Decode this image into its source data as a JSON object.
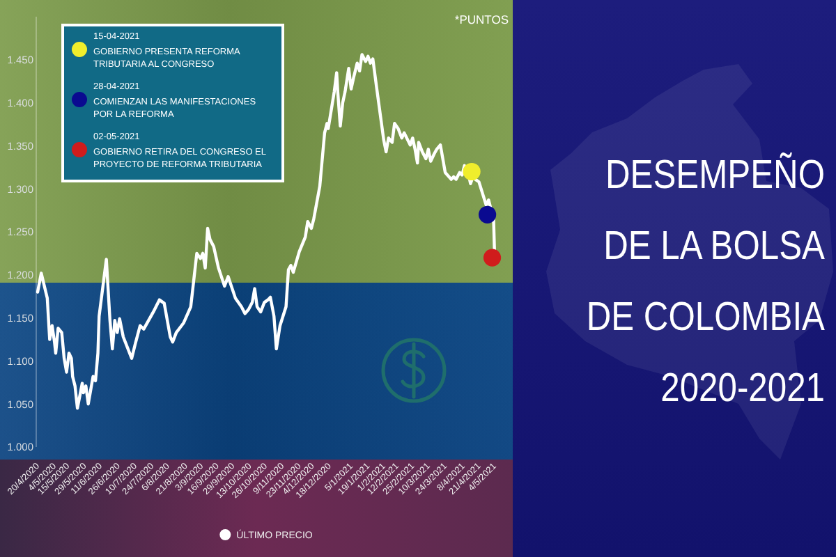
{
  "chart_data": {
    "type": "line",
    "title": "DESEMPEÑO DE LA BOLSA DE COLOMBIA 2020-2021",
    "ylabel": "*PUNTOS",
    "xlim": [
      "2020-04-20",
      "2021-05-04"
    ],
    "xticks": [
      {
        "value": "2020-04-20",
        "label": "20/4/2020"
      },
      {
        "value": "2020-05-04",
        "label": "4/5/2020"
      },
      {
        "value": "2020-05-15",
        "label": "15/5/2020"
      },
      {
        "value": "2020-05-29",
        "label": "29/5/2020"
      },
      {
        "value": "2020-06-11",
        "label": "11/6/2020"
      },
      {
        "value": "2020-06-26",
        "label": "26/6/2020"
      },
      {
        "value": "2020-07-10",
        "label": "10/7/2020"
      },
      {
        "value": "2020-07-24",
        "label": "24/7/2020"
      },
      {
        "value": "2020-08-06",
        "label": "6/8/2020"
      },
      {
        "value": "2020-08-21",
        "label": "21/8/2020"
      },
      {
        "value": "2020-09-03",
        "label": "3/9/2020"
      },
      {
        "value": "2020-09-16",
        "label": "16/9/2020"
      },
      {
        "value": "2020-09-29",
        "label": "29/9/2020"
      },
      {
        "value": "2020-10-13",
        "label": "13/10/2020"
      },
      {
        "value": "2020-10-26",
        "label": "26/10/2020"
      },
      {
        "value": "2020-11-09",
        "label": "9/11/2020"
      },
      {
        "value": "2020-11-23",
        "label": "23/11/2020"
      },
      {
        "value": "2020-12-04",
        "label": "4/12/2020"
      },
      {
        "value": "2020-12-18",
        "label": "18/12/2020"
      },
      {
        "value": "2021-01-05",
        "label": "5/1/2021"
      },
      {
        "value": "2021-01-19",
        "label": "19/1/2021"
      },
      {
        "value": "2021-02-01",
        "label": "1/2/2021"
      },
      {
        "value": "2021-02-12",
        "label": "12/2/2021"
      },
      {
        "value": "2021-02-25",
        "label": "25/2/2021"
      },
      {
        "value": "2021-03-10",
        "label": "10/3/2021"
      },
      {
        "value": "2021-03-24",
        "label": "24/3/2021"
      },
      {
        "value": "2021-04-08",
        "label": "8/4/2021"
      },
      {
        "value": "2021-04-21",
        "label": "21/4/2021"
      },
      {
        "value": "2021-05-04",
        "label": "4/5/2021"
      }
    ],
    "ylim": [
      1000,
      1500
    ],
    "yticks": [
      {
        "value": 1000,
        "label": "1.000"
      },
      {
        "value": 1050,
        "label": "1.050"
      },
      {
        "value": 1100,
        "label": "1.100"
      },
      {
        "value": 1150,
        "label": "1.150"
      },
      {
        "value": 1200,
        "label": "1.200"
      },
      {
        "value": 1250,
        "label": "1.250"
      },
      {
        "value": 1300,
        "label": "1.300"
      },
      {
        "value": 1350,
        "label": "1.350"
      },
      {
        "value": 1400,
        "label": "1.400"
      },
      {
        "value": 1450,
        "label": "1.450"
      }
    ],
    "legend": "bottom",
    "series": [
      {
        "name": "ÚLTIMO PRECIO",
        "color": "#ffffff",
        "x": [
          "2020-04-20",
          "2020-04-23",
          "2020-04-28",
          "2020-04-30",
          "2020-05-02",
          "2020-05-04",
          "2020-05-05",
          "2020-05-07",
          "2020-05-10",
          "2020-05-12",
          "2020-05-14",
          "2020-05-16",
          "2020-05-18",
          "2020-05-19",
          "2020-05-21",
          "2020-05-23",
          "2020-05-27",
          "2020-05-28",
          "2020-05-30",
          "2020-06-01",
          "2020-06-03",
          "2020-06-05",
          "2020-06-07",
          "2020-06-09",
          "2020-06-10",
          "2020-06-16",
          "2020-06-19",
          "2020-06-21",
          "2020-06-23",
          "2020-06-25",
          "2020-06-27",
          "2020-06-30",
          "2020-07-07",
          "2020-07-10",
          "2020-07-14",
          "2020-07-17",
          "2020-07-25",
          "2020-07-30",
          "2020-08-03",
          "2020-08-08",
          "2020-08-10",
          "2020-08-13",
          "2020-08-19",
          "2020-08-25",
          "2020-08-30",
          "2020-09-02",
          "2020-09-04",
          "2020-09-06",
          "2020-09-08",
          "2020-09-10",
          "2020-09-13",
          "2020-09-17",
          "2020-09-22",
          "2020-09-25",
          "2020-10-01",
          "2020-10-06",
          "2020-10-09",
          "2020-10-12",
          "2020-10-15",
          "2020-10-17",
          "2020-10-19",
          "2020-10-22",
          "2020-10-25",
          "2020-10-28",
          "2020-10-30",
          "2020-11-02",
          "2020-11-04",
          "2020-11-07",
          "2020-11-12",
          "2020-11-14",
          "2020-11-16",
          "2020-11-18",
          "2020-11-23",
          "2020-11-28",
          "2020-11-30",
          "2020-12-03",
          "2020-12-05",
          "2020-12-10",
          "2020-12-14",
          "2020-12-16",
          "2020-12-17",
          "2020-12-22",
          "2020-12-24",
          "2020-12-25",
          "2020-12-27",
          "2020-12-29",
          "2020-12-31",
          "2021-01-03",
          "2021-01-05",
          "2021-01-07",
          "2021-01-10",
          "2021-01-12",
          "2021-01-14",
          "2021-01-17",
          "2021-01-19",
          "2021-01-21",
          "2021-01-23",
          "2021-01-26",
          "2021-02-01",
          "2021-02-03",
          "2021-02-05",
          "2021-02-08",
          "2021-02-10",
          "2021-02-13",
          "2021-02-16",
          "2021-02-18",
          "2021-02-23",
          "2021-02-25",
          "2021-02-27",
          "2021-03-01",
          "2021-03-02",
          "2021-03-05",
          "2021-03-08",
          "2021-03-10",
          "2021-03-12",
          "2021-03-15",
          "2021-03-17",
          "2021-03-20",
          "2021-03-24",
          "2021-03-29",
          "2021-03-31",
          "2021-04-02",
          "2021-04-05",
          "2021-04-07",
          "2021-04-09",
          "2021-04-12",
          "2021-04-14",
          "2021-04-16",
          "2021-04-18",
          "2021-04-21",
          "2021-04-27",
          "2021-04-29",
          "2021-05-01",
          "2021-05-03",
          "2021-05-04"
        ],
        "values": [
          1180,
          1202,
          1173,
          1125,
          1141,
          1122,
          1109,
          1138,
          1133,
          1103,
          1087,
          1109,
          1103,
          1082,
          1071,
          1045,
          1074,
          1063,
          1071,
          1050,
          1066,
          1082,
          1077,
          1109,
          1152,
          1218,
          1147,
          1114,
          1147,
          1133,
          1149,
          1128,
          1103,
          1120,
          1141,
          1137,
          1157,
          1171,
          1167,
          1128,
          1122,
          1133,
          1144,
          1163,
          1225,
          1219,
          1225,
          1208,
          1254,
          1241,
          1233,
          1208,
          1187,
          1198,
          1173,
          1163,
          1155,
          1160,
          1168,
          1184,
          1163,
          1157,
          1168,
          1171,
          1174,
          1152,
          1114,
          1141,
          1163,
          1206,
          1211,
          1203,
          1227,
          1244,
          1262,
          1254,
          1265,
          1303,
          1365,
          1376,
          1370,
          1413,
          1435,
          1411,
          1373,
          1400,
          1413,
          1440,
          1416,
          1429,
          1446,
          1437,
          1456,
          1448,
          1454,
          1446,
          1451,
          1419,
          1357,
          1343,
          1359,
          1354,
          1376,
          1370,
          1359,
          1365,
          1351,
          1359,
          1346,
          1330,
          1354,
          1343,
          1335,
          1346,
          1332,
          1341,
          1346,
          1351,
          1319,
          1311,
          1314,
          1311,
          1319,
          1316,
          1327,
          1319,
          1306,
          1314,
          1311,
          1308,
          1281,
          1287,
          1276,
          1271,
          1222
        ]
      },
      {
        "type": "scatter",
        "name": "15-04-2021 GOBIERNO PRESENTA REFORMA TRIBUTARIA AL CONGRESO",
        "color": "#f0ee2c",
        "marker": "circle",
        "x": [
          "2021-04-15"
        ],
        "values": [
          1320
        ]
      },
      {
        "type": "scatter",
        "name": "28-04-2021 COMIENZAN LAS MANIFESTACIONES POR LA REFORMA",
        "color": "#0a0a90",
        "marker": "circle",
        "x": [
          "2021-04-28"
        ],
        "values": [
          1270
        ]
      },
      {
        "type": "scatter",
        "name": "02-05-2021 GOBIERNO RETIRA DEL CONGRESO EL PROYECTO DE REFORMA TRIBUTARIA",
        "color": "#d01c1c",
        "marker": "circle",
        "x": [
          "2021-05-02"
        ],
        "values": [
          1220
        ]
      }
    ]
  }
}
